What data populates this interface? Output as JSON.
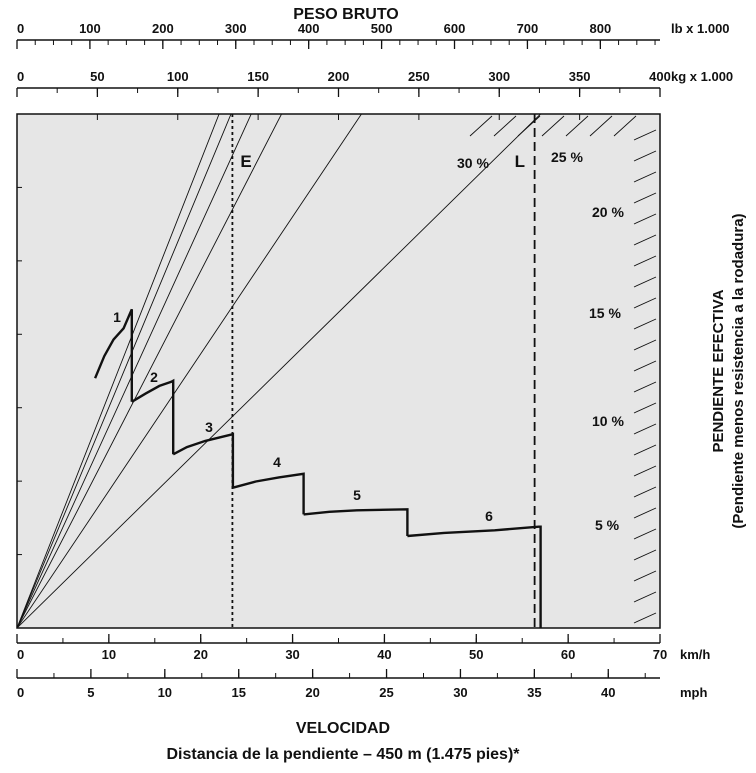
{
  "chart_data": {
    "type": "line",
    "title": "PESO BRUTO",
    "bottom_title": "VELOCIDAD",
    "footnote": "Distancia de la pendiente – 450 m (1.475 pies)*",
    "right_title": "PENDIENTE EFECTIVA",
    "right_subtitle": "(Pendiente menos resistencia a la rodadura)",
    "grid": false,
    "axes": {
      "top_lb": {
        "unit": "lb x 1.000",
        "ticks": [
          0,
          100,
          200,
          300,
          400,
          500,
          600,
          700,
          800
        ],
        "range": [
          0,
          881.8
        ]
      },
      "top_kg": {
        "unit": "kg x 1.000",
        "ticks": [
          0,
          50,
          100,
          150,
          200,
          250,
          300,
          350,
          400
        ],
        "range": [
          0,
          400
        ]
      },
      "bottom_kmh": {
        "unit": "km/h",
        "ticks": [
          0,
          10,
          20,
          30,
          40,
          50,
          60,
          70
        ],
        "range": [
          0,
          70
        ]
      },
      "bottom_mph": {
        "unit": "mph",
        "ticks": [
          0,
          5,
          10,
          15,
          20,
          25,
          30,
          35,
          40
        ],
        "range": [
          0,
          43.5
        ]
      }
    },
    "grade_lines": [
      {
        "label": "5 %",
        "end_kmh": 57.0
      },
      {
        "label": "10 %",
        "end_kmh": 37.5
      },
      {
        "label": "15 %",
        "end_kmh": 28.8
      },
      {
        "label": "20 %",
        "end_kmh": 25.5
      },
      {
        "label": "25 %",
        "end_kmh": 23.3
      },
      {
        "label": "30 %",
        "end_kmh": 22.0
      }
    ],
    "reference_lines": [
      {
        "label": "E",
        "kg": 134,
        "style": "dotted"
      },
      {
        "label": "L",
        "kg": 322,
        "style": "dashed"
      }
    ],
    "gear_curve": [
      {
        "gear": "1",
        "points": [
          [
            8.5,
            0.486
          ],
          [
            9.5,
            0.529
          ],
          [
            10.5,
            0.561
          ],
          [
            11.6,
            0.583
          ],
          [
            12.5,
            0.62
          ],
          [
            12.5,
            0.44
          ]
        ]
      },
      {
        "gear": "2",
        "points": [
          [
            12.5,
            0.44
          ],
          [
            14.0,
            0.456
          ],
          [
            15.5,
            0.471
          ],
          [
            16.8,
            0.479
          ],
          [
            17.0,
            0.481
          ],
          [
            17.0,
            0.338
          ]
        ]
      },
      {
        "gear": "3",
        "points": [
          [
            17.0,
            0.338
          ],
          [
            18.5,
            0.352
          ],
          [
            20.5,
            0.364
          ],
          [
            23.0,
            0.375
          ],
          [
            23.5,
            0.377
          ],
          [
            23.5,
            0.273
          ]
        ]
      },
      {
        "gear": "4",
        "points": [
          [
            23.5,
            0.273
          ],
          [
            26.0,
            0.285
          ],
          [
            28.5,
            0.293
          ],
          [
            31.2,
            0.3
          ],
          [
            31.2,
            0.221
          ]
        ]
      },
      {
        "gear": "5",
        "points": [
          [
            31.2,
            0.221
          ],
          [
            34.0,
            0.226
          ],
          [
            37.0,
            0.229
          ],
          [
            42.5,
            0.231
          ],
          [
            42.5,
            0.179
          ]
        ]
      },
      {
        "gear": "6",
        "points": [
          [
            42.5,
            0.179
          ],
          [
            46.5,
            0.185
          ],
          [
            52.0,
            0.19
          ],
          [
            56.8,
            0.197
          ],
          [
            57.0,
            0.197
          ],
          [
            57.0,
            0.0
          ]
        ]
      }
    ]
  },
  "colors": {
    "plot_bg": "#e6e6e6",
    "ink": "#111111",
    "curve": "#111111"
  }
}
